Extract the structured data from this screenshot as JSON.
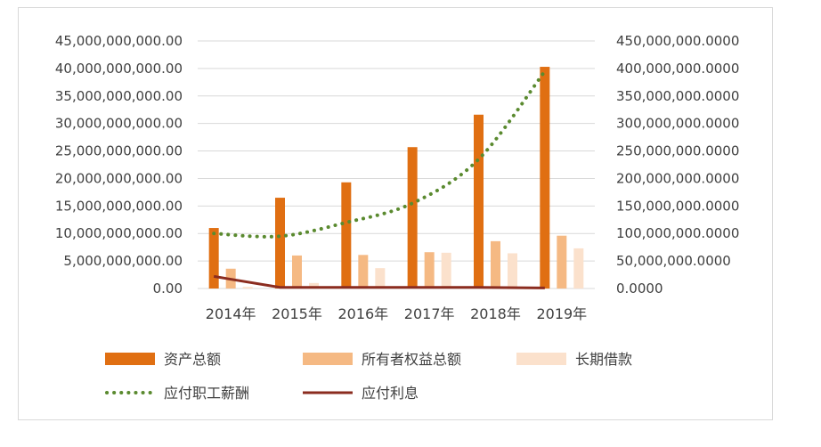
{
  "chart_data": {
    "type": "bar",
    "categories": [
      "2014年",
      "2015年",
      "2016年",
      "2017年",
      "2018年",
      "2019年"
    ],
    "left_axis": {
      "range": [
        0,
        45000000000
      ],
      "ticks": [
        "0.00",
        "5,000,000,000.00",
        "10,000,000,000.00",
        "15,000,000,000.00",
        "20,000,000,000.00",
        "25,000,000,000.00",
        "30,000,000,000.00",
        "35,000,000,000.00",
        "40,000,000,000.00",
        "45,000,000,000.00"
      ]
    },
    "right_axis": {
      "range": [
        0,
        450000000
      ],
      "ticks": [
        "0.0000",
        "50,000,000.0000",
        "100,000,000.0000",
        "150,000,000.0000",
        "200,000,000.0000",
        "250,000,000.0000",
        "300,000,000.0000",
        "350,000,000.0000",
        "400,000,000.0000",
        "450,000,000.0000"
      ]
    },
    "series": [
      {
        "name": "资产总额",
        "type": "bar",
        "axis": "left",
        "color": "#e06f12",
        "values": [
          11000000000,
          16500000000,
          19300000000,
          25700000000,
          31600000000,
          40300000000
        ]
      },
      {
        "name": "所有者权益总额",
        "type": "bar",
        "axis": "left",
        "color": "#f5b983",
        "values": [
          3600000000,
          6000000000,
          6100000000,
          6600000000,
          8600000000,
          9600000000
        ]
      },
      {
        "name": "长期借款",
        "type": "bar",
        "axis": "left",
        "color": "#fbe1cc",
        "values": [
          300000000,
          1000000000,
          3700000000,
          6500000000,
          6400000000,
          7300000000
        ]
      },
      {
        "name": "应付职工薪酬",
        "type": "line",
        "axis": "right",
        "style": "dotted",
        "color": "#5a8a2f",
        "values": [
          100000000,
          95000000,
          120000000,
          155000000,
          235000000,
          395000000
        ]
      },
      {
        "name": "应付利息",
        "type": "line",
        "axis": "right",
        "style": "solid",
        "color": "#8b2c1f",
        "values": [
          22000000,
          2000000,
          2000000,
          2000000,
          2000000,
          1000000
        ]
      }
    ],
    "grid": true,
    "legend_position": "bottom"
  }
}
